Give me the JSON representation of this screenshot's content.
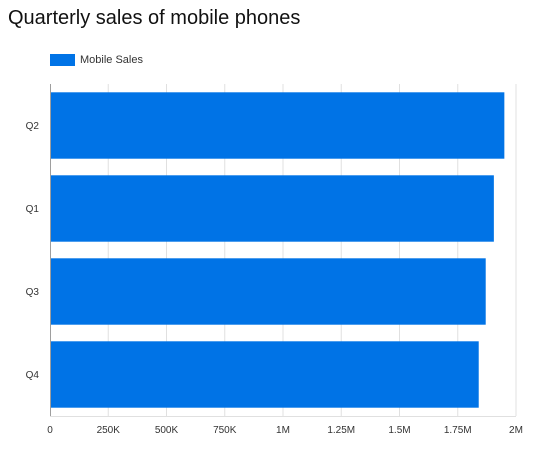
{
  "chart_data": {
    "type": "bar",
    "orientation": "horizontal",
    "title": "Quarterly sales of mobile phones",
    "xlabel": "",
    "ylabel": "",
    "categories": [
      "Q2",
      "Q1",
      "Q3",
      "Q4"
    ],
    "series": [
      {
        "name": "Mobile Sales",
        "color": "#0073e6",
        "values": [
          1950000,
          1905000,
          1870000,
          1840000
        ]
      }
    ],
    "xlim": [
      0,
      2000000
    ],
    "xticks": [
      0,
      250000,
      500000,
      750000,
      1000000,
      1250000,
      1500000,
      1750000,
      2000000
    ],
    "xtick_labels": [
      "0",
      "250K",
      "500K",
      "750K",
      "1M",
      "1.25M",
      "1.5M",
      "1.75M",
      "2M"
    ],
    "grid": true,
    "legend_position": "top-left"
  }
}
